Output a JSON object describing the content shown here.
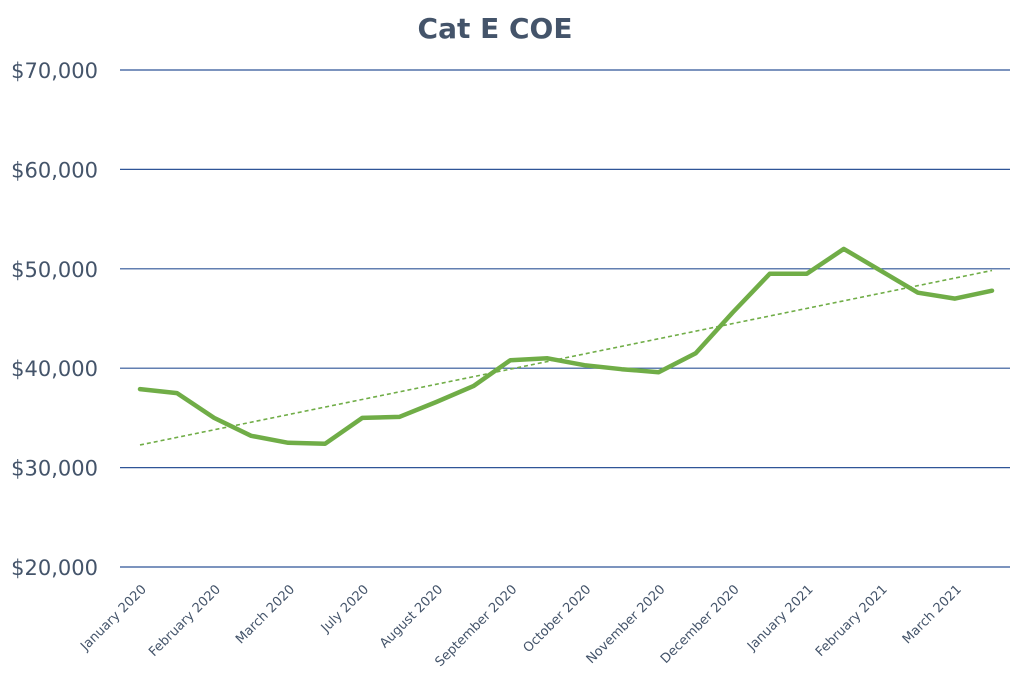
{
  "chart_data": {
    "type": "line",
    "title": "Cat E COE",
    "xlabel": "",
    "ylabel": "",
    "ylim": [
      20000,
      70000
    ],
    "y_ticks": [
      20000,
      30000,
      40000,
      50000,
      60000,
      70000
    ],
    "y_tick_labels": [
      "$20,000",
      "$30,000",
      "$40,000",
      "$50,000",
      "$60,000",
      "$70,000"
    ],
    "x_tick_labels": [
      "January 2020",
      "February 2020",
      "March 2020",
      "July 2020",
      "August 2020",
      "September 2020",
      "October 2020",
      "November 2020",
      "December 2020",
      "January 2021",
      "February 2021",
      "March 2021"
    ],
    "grid": true,
    "legend": "none",
    "colors": {
      "series": "#70ad47",
      "trendline": "#70ad47",
      "grid": "#2f5597",
      "text": "#44546a"
    },
    "series": [
      {
        "values": [
          37900,
          37500,
          35000,
          33200,
          32500,
          32400,
          35000,
          35100,
          36600,
          38200,
          40800,
          41000,
          40300,
          39900,
          39600,
          41500,
          45600,
          49500,
          49500,
          52000,
          49800,
          47600,
          47000,
          47800
        ],
        "trendline": "linear"
      }
    ]
  }
}
